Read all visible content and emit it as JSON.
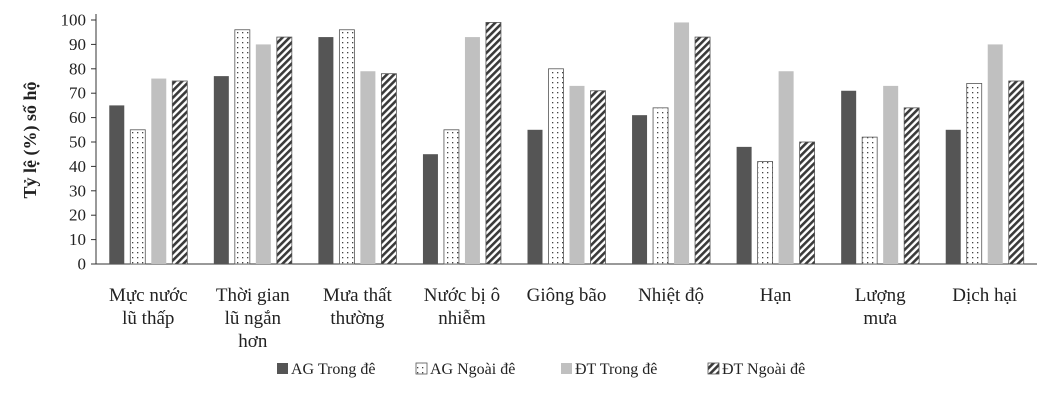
{
  "chart_data": {
    "type": "bar",
    "ylabel": "Tỷ lệ (%) số hộ",
    "xlabel": "",
    "ylim": [
      0,
      100
    ],
    "yticks": [
      0,
      10,
      20,
      30,
      40,
      50,
      60,
      70,
      80,
      90,
      100
    ],
    "grid": false,
    "legend_position": "bottom",
    "categories": [
      [
        "Mực nước",
        "lũ thấp"
      ],
      [
        "Thời gian",
        "lũ ngắn",
        "hơn"
      ],
      [
        "Mưa thất",
        "thường"
      ],
      [
        "Nước bị ô",
        "nhiễm"
      ],
      [
        "Giông bão"
      ],
      [
        "Nhiệt độ"
      ],
      [
        "Hạn"
      ],
      [
        "Lượng",
        "mưa"
      ],
      [
        "Dịch hại"
      ]
    ],
    "series": [
      {
        "name": "AG Trong đê",
        "style": "solid",
        "color": "#555555",
        "values": [
          65,
          77,
          93,
          45,
          55,
          61,
          48,
          71,
          55
        ]
      },
      {
        "name": "AG Ngoài đê",
        "style": "dotted",
        "color": "#ffffff",
        "values": [
          55,
          96,
          96,
          55,
          80,
          64,
          42,
          52,
          74
        ]
      },
      {
        "name": "ĐT Trong đê",
        "style": "light",
        "color": "#c0c0c0",
        "values": [
          76,
          90,
          79,
          93,
          73,
          99,
          79,
          73,
          90
        ]
      },
      {
        "name": "ĐT Ngoài đê",
        "style": "hatched",
        "color": "#333333",
        "values": [
          75,
          93,
          78,
          99,
          71,
          93,
          50,
          64,
          75
        ]
      }
    ]
  }
}
